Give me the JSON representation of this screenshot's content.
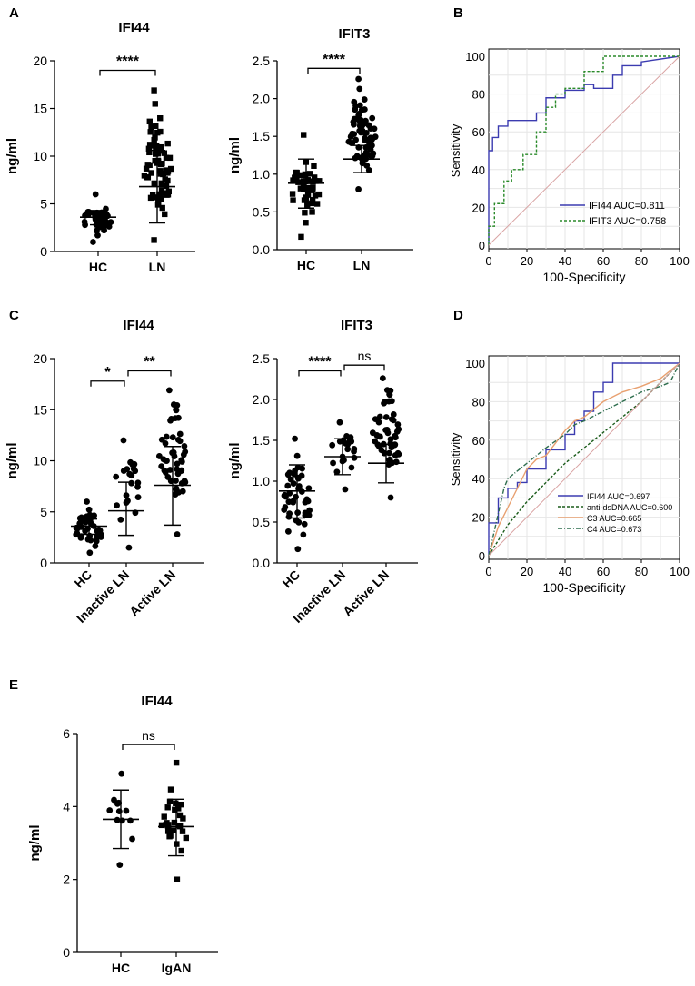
{
  "figure": {
    "panel_labels": [
      "A",
      "B",
      "C",
      "D",
      "E"
    ]
  },
  "chart_data": [
    {
      "id": "A1",
      "type": "scatter",
      "title": "IFI44",
      "ylabel": "ng/ml",
      "ylim": [
        0,
        20
      ],
      "yticks": [
        "0",
        "5",
        "10",
        "15",
        "20"
      ],
      "categories": [
        "HC",
        "LN"
      ],
      "markers": [
        "circle",
        "square"
      ],
      "groups": [
        {
          "label": "HC",
          "n": 40,
          "min": 1.0,
          "max": 6.0,
          "mean": 3.6,
          "sd_low": 2.8,
          "sd_high": 4.3
        },
        {
          "label": "LN",
          "n": 70,
          "min": 1.2,
          "max": 16.9,
          "mean": 6.8,
          "sd_low": 3.0,
          "sd_high": 10.6
        }
      ],
      "brackets": [
        {
          "from": 0,
          "to": 1,
          "label": "****",
          "at": 19.0
        }
      ]
    },
    {
      "id": "A2",
      "type": "scatter",
      "title": "IFIT3",
      "ylabel": "ng/ml",
      "ylim": [
        0,
        2.5
      ],
      "yticks": [
        "0.0",
        "0.5",
        "1.0",
        "1.5",
        "2.0",
        "2.5"
      ],
      "categories": [
        "HC",
        "LN"
      ],
      "markers": [
        "square",
        "circle"
      ],
      "groups": [
        {
          "label": "HC",
          "n": 45,
          "min": 0.17,
          "max": 1.52,
          "mean": 0.88,
          "sd_low": 0.55,
          "sd_high": 1.2
        },
        {
          "label": "LN",
          "n": 70,
          "min": 0.8,
          "max": 2.26,
          "mean": 1.2,
          "sd_low": 1.02,
          "sd_high": 1.38
        }
      ],
      "brackets": [
        {
          "from": 0,
          "to": 1,
          "label": "****",
          "at": 2.4
        }
      ]
    },
    {
      "id": "B",
      "type": "line",
      "xlabel": "100-Specificity",
      "ylabel": "Sensitivity",
      "xlim": [
        0,
        100
      ],
      "ylim": [
        0,
        100
      ],
      "xticks": [
        "0",
        "20",
        "40",
        "60",
        "80",
        "100"
      ],
      "yticks": [
        "0",
        "20",
        "40",
        "60",
        "80",
        "100"
      ],
      "legend_position": "bottom-right",
      "series": [
        {
          "name": "IFI44 AUC=0.811",
          "color": "#3b3bb0",
          "dash": "solid",
          "x": [
            0,
            0,
            2,
            2,
            5,
            5,
            10,
            10,
            25,
            25,
            30,
            30,
            40,
            40,
            50,
            50,
            55,
            55,
            65,
            65,
            70,
            70,
            80,
            80,
            100
          ],
          "y": [
            0,
            50,
            50,
            57,
            57,
            63,
            63,
            66,
            66,
            70,
            70,
            78,
            78,
            82,
            82,
            85,
            85,
            83,
            83,
            90,
            90,
            95,
            95,
            97,
            100
          ]
        },
        {
          "name": "IFIT3 AUC=0.758",
          "color": "#2a8a2a",
          "dash": "dashed",
          "x": [
            0,
            0,
            3,
            3,
            8,
            8,
            12,
            12,
            18,
            18,
            25,
            25,
            30,
            30,
            35,
            35,
            40,
            40,
            50,
            50,
            60,
            60,
            70,
            70,
            100
          ],
          "y": [
            0,
            10,
            10,
            22,
            22,
            34,
            34,
            40,
            40,
            48,
            48,
            60,
            60,
            73,
            73,
            80,
            80,
            83,
            83,
            92,
            92,
            100,
            100,
            100,
            100
          ]
        },
        {
          "name": "reference",
          "color": "#d9a3a3",
          "dash": "solid",
          "x": [
            0,
            100
          ],
          "y": [
            0,
            100
          ]
        }
      ]
    },
    {
      "id": "C1",
      "type": "scatter",
      "title": "IFI44",
      "ylabel": "ng/ml",
      "ylim": [
        0,
        20
      ],
      "yticks": [
        "0",
        "5",
        "10",
        "15",
        "20"
      ],
      "categories": [
        "HC",
        "Inactive LN",
        "Active LN"
      ],
      "markers": [
        "circle",
        "circle",
        "circle"
      ],
      "groups": [
        {
          "label": "HC",
          "n": 40,
          "min": 1.0,
          "max": 6.0,
          "mean": 3.6,
          "sd_low": 2.8,
          "sd_high": 4.3
        },
        {
          "label": "Inactive LN",
          "n": 22,
          "min": 1.5,
          "max": 12.0,
          "mean": 5.1,
          "sd_low": 2.7,
          "sd_high": 7.9
        },
        {
          "label": "Active LN",
          "n": 50,
          "min": 2.8,
          "max": 16.9,
          "mean": 7.6,
          "sd_low": 3.7,
          "sd_high": 11.4
        }
      ],
      "brackets": [
        {
          "from": 0,
          "to": 1,
          "label": "*",
          "at": 17.8
        },
        {
          "from": 1,
          "to": 2,
          "label": "**",
          "at": 18.8
        }
      ]
    },
    {
      "id": "C2",
      "type": "scatter",
      "title": "IFIT3",
      "ylabel": "ng/ml",
      "ylim": [
        0,
        2.5
      ],
      "yticks": [
        "0.0",
        "0.5",
        "1.0",
        "1.5",
        "2.0",
        "2.5"
      ],
      "categories": [
        "HC",
        "Inactive LN",
        "Active LN"
      ],
      "markers": [
        "circle",
        "circle",
        "circle"
      ],
      "groups": [
        {
          "label": "HC",
          "n": 45,
          "min": 0.17,
          "max": 1.52,
          "mean": 0.88,
          "sd_low": 0.55,
          "sd_high": 1.2
        },
        {
          "label": "Inactive LN",
          "n": 22,
          "min": 0.9,
          "max": 1.72,
          "mean": 1.3,
          "sd_low": 1.08,
          "sd_high": 1.52
        },
        {
          "label": "Active LN",
          "n": 50,
          "min": 0.8,
          "max": 2.26,
          "mean": 1.22,
          "sd_low": 0.98,
          "sd_high": 1.45
        }
      ],
      "brackets": [
        {
          "from": 0,
          "to": 1,
          "label": "****",
          "at": 2.35
        },
        {
          "from": 1,
          "to": 2,
          "label": "ns",
          "at": 2.42
        }
      ]
    },
    {
      "id": "D",
      "type": "line",
      "xlabel": "100-Specificity",
      "ylabel": "Sensitivity",
      "xlim": [
        0,
        100
      ],
      "ylim": [
        0,
        100
      ],
      "xticks": [
        "0",
        "20",
        "40",
        "60",
        "80",
        "100"
      ],
      "yticks": [
        "0",
        "20",
        "40",
        "60",
        "80",
        "100"
      ],
      "legend_position": "bottom-right",
      "series": [
        {
          "name": "IFI44 AUC=0.697",
          "color": "#3b3bb0",
          "dash": "solid",
          "x": [
            0,
            0,
            5,
            5,
            10,
            10,
            15,
            15,
            20,
            20,
            30,
            30,
            40,
            40,
            45,
            45,
            50,
            50,
            55,
            55,
            60,
            60,
            65,
            65,
            100
          ],
          "y": [
            0,
            17,
            17,
            30,
            30,
            35,
            35,
            38,
            38,
            45,
            45,
            55,
            55,
            63,
            63,
            70,
            70,
            75,
            75,
            85,
            85,
            90,
            90,
            100,
            100
          ]
        },
        {
          "name": "anti-dsDNA AUC=0.600",
          "color": "#1a5c1a",
          "dash": "dashed",
          "x": [
            0,
            10,
            20,
            30,
            40,
            50,
            60,
            70,
            80,
            90,
            100
          ],
          "y": [
            0,
            16,
            28,
            38,
            48,
            56,
            64,
            72,
            80,
            90,
            100
          ]
        },
        {
          "name": "C3 AUC=0.665",
          "color": "#e8a070",
          "dash": "solid",
          "x": [
            0,
            5,
            10,
            20,
            25,
            30,
            40,
            45,
            50,
            60,
            70,
            80,
            90,
            100
          ],
          "y": [
            0,
            15,
            25,
            45,
            50,
            52,
            65,
            70,
            72,
            80,
            85,
            88,
            92,
            100
          ]
        },
        {
          "name": "C4 AUC=0.673",
          "color": "#2e6e4e",
          "dash": "dashdot",
          "x": [
            0,
            8,
            10,
            20,
            30,
            40,
            45,
            50,
            60,
            70,
            80,
            90,
            95,
            100
          ],
          "y": [
            0,
            35,
            40,
            48,
            56,
            63,
            68,
            70,
            75,
            80,
            85,
            88,
            90,
            100
          ]
        },
        {
          "name": "reference",
          "color": "#d9a3a3",
          "dash": "solid",
          "x": [
            0,
            100
          ],
          "y": [
            0,
            100
          ]
        }
      ]
    },
    {
      "id": "E",
      "type": "scatter",
      "title": "IFI44",
      "ylabel": "ng/ml",
      "ylim": [
        0,
        6
      ],
      "yticks": [
        "0",
        "2",
        "4",
        "6"
      ],
      "categories": [
        "HC",
        "IgAN"
      ],
      "markers": [
        "circle",
        "square"
      ],
      "groups": [
        {
          "label": "HC",
          "n": 12,
          "min": 2.4,
          "max": 4.9,
          "mean": 3.65,
          "sd_low": 2.85,
          "sd_high": 4.45
        },
        {
          "label": "IgAN",
          "n": 28,
          "min": 2.0,
          "max": 5.2,
          "mean": 3.45,
          "sd_low": 2.65,
          "sd_high": 4.2
        }
      ],
      "brackets": [
        {
          "from": 0,
          "to": 1,
          "label": "ns",
          "at": 5.7
        }
      ]
    }
  ]
}
